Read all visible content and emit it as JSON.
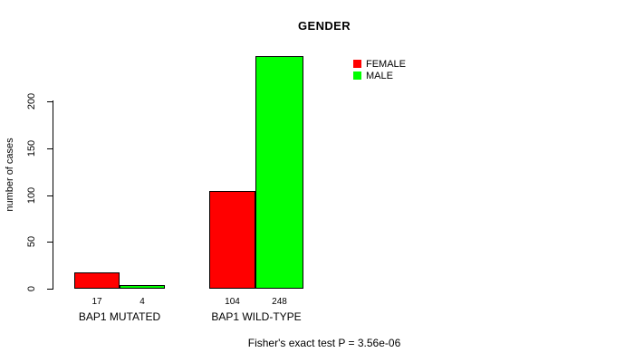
{
  "title": "GENDER",
  "y_axis": {
    "label": "number of cases",
    "tick_labels": [
      "0",
      "50",
      "100",
      "150",
      "200"
    ]
  },
  "caption": "Fisher's exact test P = 3.56e-06",
  "chart_data": {
    "type": "bar",
    "title": "GENDER",
    "xlabel": "",
    "ylabel": "number of cases",
    "categories": [
      "BAP1 MUTATED",
      "BAP1 WILD-TYPE"
    ],
    "series": [
      {
        "name": "FEMALE",
        "color": "#ff0000",
        "values": [
          17,
          104
        ]
      },
      {
        "name": "MALE",
        "color": "#00ff00",
        "values": [
          4,
          248
        ]
      }
    ],
    "bar_value_labels": {
      "FEMALE": [
        "17",
        "104"
      ],
      "MALE": [
        "4",
        "248"
      ]
    },
    "yticks": [
      0,
      50,
      100,
      150,
      200
    ],
    "ylim": [
      0,
      260
    ],
    "grid": false,
    "legend_position": "top-right-inside",
    "annotation": "Fisher's exact test P = 3.56e-06"
  }
}
